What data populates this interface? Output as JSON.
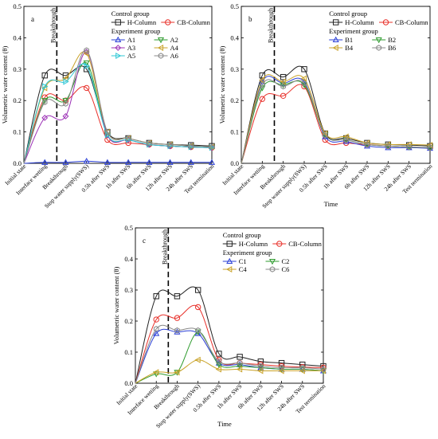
{
  "chart_data": [
    {
      "type": "line",
      "panel_label": "a",
      "ylabel": "Volumetric water content (θ)",
      "xlabel": "",
      "ylim": [
        0,
        0.5
      ],
      "yticks": [
        "0.0",
        "0.1",
        "0.2",
        "0.3",
        "0.4",
        "0.5"
      ],
      "categories": [
        "Initial state",
        "Interface wetting",
        "Breakthrough",
        "Stop water supply(SWS)",
        "0.5h after SWS",
        "1h after SWS",
        "6h after SWS",
        "12h after SWS",
        "24h after SWS",
        "Test termination"
      ],
      "breakthrough_label": "Breakthrough",
      "legend_placement": "top-right",
      "legend_control_title": "Control group",
      "legend_experiment_title": "Experiment group",
      "series": [
        {
          "name": "H-Column",
          "group": "control",
          "color": "#222222",
          "marker": "square",
          "values": [
            0,
            0.28,
            0.28,
            0.3,
            0.1,
            0.08,
            0.065,
            0.06,
            0.058,
            0.055
          ]
        },
        {
          "name": "CB-Column",
          "group": "control",
          "color": "#e8302a",
          "marker": "circle",
          "values": [
            0,
            0.21,
            0.2,
            0.24,
            0.075,
            0.065,
            0.06,
            0.055,
            0.052,
            0.05
          ]
        },
        {
          "name": "A1",
          "group": "experiment",
          "color": "#2a3fd6",
          "marker": "triangle-up",
          "values": [
            0,
            0.003,
            0.003,
            0.007,
            0.003,
            0.003,
            0.003,
            0.003,
            0.003,
            0.003
          ]
        },
        {
          "name": "A2",
          "group": "experiment",
          "color": "#2e9b2e",
          "marker": "triangle-down",
          "values": [
            0,
            0.2,
            0.2,
            0.32,
            0.09,
            0.075,
            0.06,
            0.055,
            0.052,
            0.05
          ]
        },
        {
          "name": "A3",
          "group": "experiment",
          "color": "#9b2fb5",
          "marker": "diamond",
          "values": [
            0,
            0.145,
            0.15,
            0.355,
            0.09,
            0.075,
            0.06,
            0.055,
            0.052,
            0.05
          ]
        },
        {
          "name": "A4",
          "group": "experiment",
          "color": "#c9a227",
          "marker": "triangle-left",
          "values": [
            0,
            0.24,
            0.27,
            0.35,
            0.1,
            0.08,
            0.065,
            0.06,
            0.055,
            0.052
          ]
        },
        {
          "name": "A5",
          "group": "experiment",
          "color": "#2fc7d6",
          "marker": "triangle-right",
          "values": [
            0,
            0.245,
            0.26,
            0.31,
            0.09,
            0.075,
            0.06,
            0.055,
            0.052,
            0.05
          ]
        },
        {
          "name": "A6",
          "group": "experiment",
          "color": "#888888",
          "marker": "hexagon",
          "values": [
            0,
            0.195,
            0.19,
            0.36,
            0.1,
            0.08,
            0.065,
            0.06,
            0.055,
            0.052
          ]
        }
      ]
    },
    {
      "type": "line",
      "panel_label": "b",
      "ylabel": "Volumetric water content (θ)",
      "xlabel": "Time",
      "ylim": [
        0,
        0.5
      ],
      "yticks": [
        "0.0",
        "0.1",
        "0.2",
        "0.3",
        "0.4",
        "0.5"
      ],
      "categories": [
        "Initial state",
        "Interface wetting",
        "Breakthrough",
        "Stop water supply(SWS)",
        "0.5h after SWS",
        "1h after SWS",
        "6h after SWS",
        "12h after SWS",
        "24h after SWS",
        "Test termination"
      ],
      "breakthrough_label": "Breakthrough",
      "legend_placement": "top-right",
      "legend_control_title": "Control group",
      "legend_experiment_title": "Experiment group",
      "series": [
        {
          "name": "H-Column",
          "group": "control",
          "color": "#222222",
          "marker": "square",
          "values": [
            0,
            0.28,
            0.275,
            0.3,
            0.095,
            0.08,
            0.065,
            0.06,
            0.058,
            0.055
          ]
        },
        {
          "name": "CB-Column",
          "group": "control",
          "color": "#e8302a",
          "marker": "circle",
          "values": [
            0,
            0.205,
            0.215,
            0.245,
            0.075,
            0.065,
            0.06,
            0.055,
            0.052,
            0.05
          ]
        },
        {
          "name": "B1",
          "group": "experiment",
          "color": "#2a3fd6",
          "marker": "triangle-up",
          "values": [
            0,
            0.26,
            0.255,
            0.26,
            0.085,
            0.07,
            0.055,
            0.05,
            0.05,
            0.048
          ]
        },
        {
          "name": "B2",
          "group": "experiment",
          "color": "#2e9b2e",
          "marker": "triangle-down",
          "values": [
            0,
            0.24,
            0.25,
            0.25,
            0.09,
            0.075,
            0.06,
            0.055,
            0.052,
            0.05
          ]
        },
        {
          "name": "B4",
          "group": "experiment",
          "color": "#c9a227",
          "marker": "triangle-left",
          "values": [
            0,
            0.265,
            0.26,
            0.27,
            0.095,
            0.085,
            0.065,
            0.06,
            0.06,
            0.058
          ]
        },
        {
          "name": "B6",
          "group": "experiment",
          "color": "#888888",
          "marker": "hexagon",
          "values": [
            0,
            0.25,
            0.245,
            0.255,
            0.09,
            0.075,
            0.06,
            0.055,
            0.052,
            0.05
          ]
        }
      ]
    },
    {
      "type": "line",
      "panel_label": "c",
      "ylabel": "Volumetric water content (θ)",
      "xlabel": "Time",
      "ylim": [
        0,
        0.5
      ],
      "yticks": [
        "0.0",
        "0.1",
        "0.2",
        "0.3",
        "0.4",
        "0.5"
      ],
      "categories": [
        "Initial state",
        "Interface wetting",
        "Breakthrough",
        "Stop water supply(SWS)",
        "0.5h after SWS",
        "1h after SWS",
        "6h after SWS",
        "12h after SWS",
        "24h after SWS",
        "Test termination"
      ],
      "breakthrough_label": "Breakthrough",
      "legend_placement": "top-right",
      "legend_control_title": "Control group",
      "legend_experiment_title": "Experiment group",
      "series": [
        {
          "name": "H-Column",
          "group": "control",
          "color": "#222222",
          "marker": "square",
          "values": [
            0,
            0.28,
            0.28,
            0.3,
            0.095,
            0.085,
            0.07,
            0.065,
            0.06,
            0.055
          ]
        },
        {
          "name": "CB-Column",
          "group": "control",
          "color": "#e8302a",
          "marker": "circle",
          "values": [
            0,
            0.205,
            0.21,
            0.245,
            0.075,
            0.065,
            0.06,
            0.055,
            0.052,
            0.05
          ]
        },
        {
          "name": "C1",
          "group": "experiment",
          "color": "#2a3fd6",
          "marker": "triangle-up",
          "values": [
            0,
            0.16,
            0.165,
            0.16,
            0.065,
            0.06,
            0.05,
            0.045,
            0.045,
            0.04
          ]
        },
        {
          "name": "C2",
          "group": "experiment",
          "color": "#2e9b2e",
          "marker": "triangle-down",
          "values": [
            0,
            0.03,
            0.035,
            0.165,
            0.06,
            0.055,
            0.05,
            0.045,
            0.045,
            0.04
          ]
        },
        {
          "name": "C4",
          "group": "experiment",
          "color": "#c9a227",
          "marker": "triangle-left",
          "values": [
            0,
            0.035,
            0.035,
            0.075,
            0.045,
            0.045,
            0.04,
            0.04,
            0.04,
            0.04
          ]
        },
        {
          "name": "C6",
          "group": "experiment",
          "color": "#888888",
          "marker": "hexagon",
          "values": [
            0,
            0.175,
            0.17,
            0.17,
            0.07,
            0.065,
            0.055,
            0.05,
            0.05,
            0.045
          ]
        }
      ]
    }
  ]
}
